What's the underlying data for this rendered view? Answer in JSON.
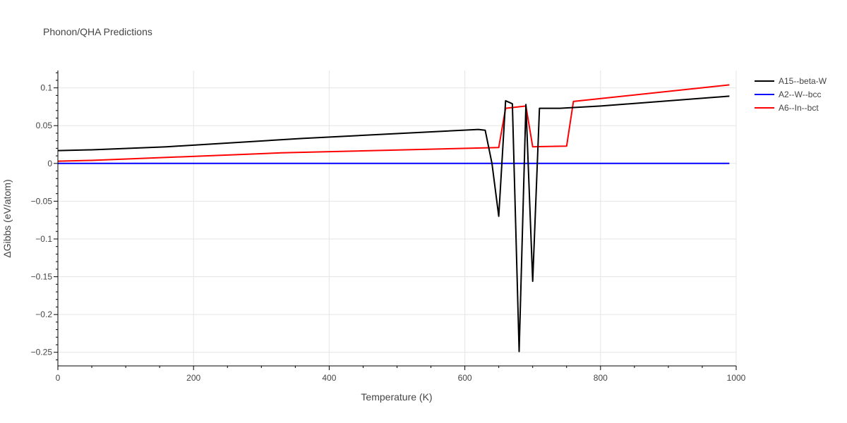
{
  "chart_data": {
    "type": "line",
    "title": "Phonon/QHA Predictions",
    "xlabel": "Temperature (K)",
    "ylabel": "ΔGibbs (eV/atom)",
    "xlim": [
      0,
      1000
    ],
    "ylim": [
      -0.268,
      0.123
    ],
    "x_ticks": [
      0,
      200,
      400,
      600,
      800,
      1000
    ],
    "x_tick_labels": [
      "0",
      "200",
      "400",
      "600",
      "800",
      "1000"
    ],
    "y_ticks": [
      -0.25,
      -0.2,
      -0.15,
      -0.1,
      -0.05,
      0,
      0.05,
      0.1
    ],
    "y_tick_labels": [
      "−0.25",
      "−0.2",
      "−0.15",
      "−0.1",
      "−0.05",
      "0",
      "0.05",
      "0.1"
    ],
    "grid": true,
    "legend_position": "top-right outside",
    "series": [
      {
        "name": "A15--beta-W",
        "color": "#000000",
        "x": [
          0,
          50,
          160,
          360,
          620,
          630,
          640,
          650,
          660,
          670,
          680,
          690,
          700,
          710,
          740,
          800,
          990
        ],
        "y": [
          0.017,
          0.018,
          0.022,
          0.033,
          0.045,
          0.044,
          0.0,
          -0.07,
          0.083,
          0.079,
          -0.249,
          0.078,
          -0.156,
          0.073,
          0.073,
          0.076,
          0.089
        ]
      },
      {
        "name": "A2--W--bcc",
        "color": "#0000ff",
        "x": [
          0,
          990
        ],
        "y": [
          0,
          0
        ]
      },
      {
        "name": "A6--In--bct",
        "color": "#ff0000",
        "x": [
          0,
          50,
          330,
          650,
          660,
          690,
          700,
          750,
          760,
          990
        ],
        "y": [
          0.003,
          0.004,
          0.014,
          0.021,
          0.073,
          0.076,
          0.022,
          0.023,
          0.082,
          0.104
        ]
      }
    ]
  }
}
